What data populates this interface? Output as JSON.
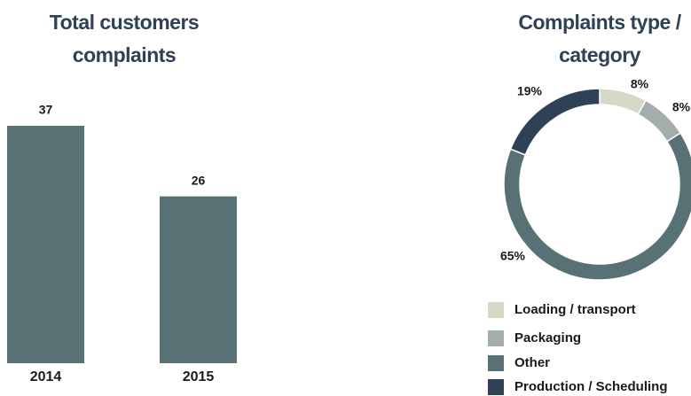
{
  "chart_data": [
    {
      "type": "bar",
      "title": "Total customers complaints",
      "categories": [
        "2014",
        "2015"
      ],
      "values": [
        37,
        26
      ],
      "color": "#587174"
    },
    {
      "type": "pie",
      "title": "Complaints type / category",
      "donut": true,
      "categories": [
        "Loading / transport",
        "Packaging",
        "Other",
        "Production / Scheduling"
      ],
      "values": [
        8,
        8,
        65,
        19
      ],
      "value_labels": [
        "8%",
        "8%",
        "65%",
        "19%"
      ],
      "colors": [
        "#d6d9c8",
        "#a3adab",
        "#587174",
        "#2f4157"
      ]
    }
  ]
}
